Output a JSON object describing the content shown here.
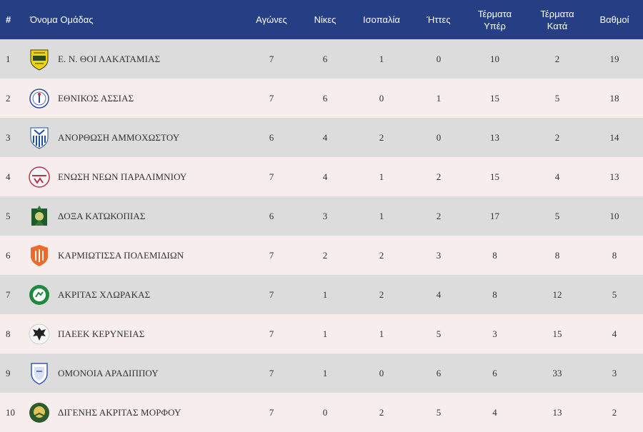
{
  "headers": {
    "pos": "#",
    "team": "Όνομα Ομάδας",
    "played": "Αγώνες",
    "wins": "Νίκες",
    "draws": "Ισοπαλία",
    "losses": "Ήττες",
    "gf_1": "Τέρματα",
    "gf_2": "Υπέρ",
    "ga_1": "Τέρματα",
    "ga_2": "Κατά",
    "points": "Βαθμοί"
  },
  "rows": [
    {
      "pos": "1",
      "team": "Ε. Ν. ΘΟΙ ΛΑΚΑΤΑΜΙΑΣ",
      "logo": "thoi-lakatamias-crest-icon",
      "played": "7",
      "wins": "6",
      "draws": "1",
      "losses": "0",
      "gf": "10",
      "ga": "2",
      "points": "19"
    },
    {
      "pos": "2",
      "team": "ΕΘΝΙΚΟΣ ΑΣΣΙΑΣ",
      "logo": "ethnikos-assias-crest-icon",
      "played": "7",
      "wins": "6",
      "draws": "0",
      "losses": "1",
      "gf": "15",
      "ga": "5",
      "points": "18"
    },
    {
      "pos": "3",
      "team": "ΑΝΟΡΘΩΣΗ ΑΜΜΟΧΩΣΤΟΥ",
      "logo": "anorthosis-crest-icon",
      "played": "6",
      "wins": "4",
      "draws": "2",
      "losses": "0",
      "gf": "13",
      "ga": "2",
      "points": "14"
    },
    {
      "pos": "4",
      "team": "ΕΝΩΣΗ ΝΕΩΝ ΠΑΡΑΛΙΜΝΙΟΥ",
      "logo": "enosis-paralimni-crest-icon",
      "played": "7",
      "wins": "4",
      "draws": "1",
      "losses": "2",
      "gf": "15",
      "ga": "4",
      "points": "13"
    },
    {
      "pos": "5",
      "team": "ΔΟΞΑ ΚΑΤΩΚΟΠΙΑΣ",
      "logo": "doxa-katokopias-crest-icon",
      "played": "6",
      "wins": "3",
      "draws": "1",
      "losses": "2",
      "gf": "17",
      "ga": "5",
      "points": "10"
    },
    {
      "pos": "6",
      "team": "ΚΑΡΜΙΩΤΙΣΣΑ ΠΟΛΕΜΙΔΙΩΝ",
      "logo": "karmiotissa-crest-icon",
      "played": "7",
      "wins": "2",
      "draws": "2",
      "losses": "3",
      "gf": "8",
      "ga": "8",
      "points": "8"
    },
    {
      "pos": "7",
      "team": "ΑΚΡΙΤΑΣ ΧΛΩΡΑΚΑΣ",
      "logo": "akritas-chlorakas-crest-icon",
      "played": "7",
      "wins": "1",
      "draws": "2",
      "losses": "4",
      "gf": "8",
      "ga": "12",
      "points": "5"
    },
    {
      "pos": "8",
      "team": "ΠΑΕΕΚ ΚΕΡΥΝΕΙΑΣ",
      "logo": "paeek-crest-icon",
      "played": "7",
      "wins": "1",
      "draws": "1",
      "losses": "5",
      "gf": "3",
      "ga": "15",
      "points": "4"
    },
    {
      "pos": "9",
      "team": "ΟΜΟΝΟΙΑ ΑΡΑΔΙΠΠΟΥ",
      "logo": "omonoia-aradippou-crest-icon",
      "played": "7",
      "wins": "1",
      "draws": "0",
      "losses": "6",
      "gf": "6",
      "ga": "33",
      "points": "3"
    },
    {
      "pos": "10",
      "team": "ΔΙΓΕΝΗΣ ΑΚΡΙΤΑΣ ΜΟΡΦΟΥ",
      "logo": "digenis-morfou-crest-icon",
      "played": "7",
      "wins": "0",
      "draws": "2",
      "losses": "5",
      "gf": "4",
      "ga": "13",
      "points": "2"
    }
  ],
  "colors": {
    "header_bg": "#263e83",
    "row_odd": "#dcdcdc",
    "row_even": "#f7eded",
    "text": "#333333"
  }
}
